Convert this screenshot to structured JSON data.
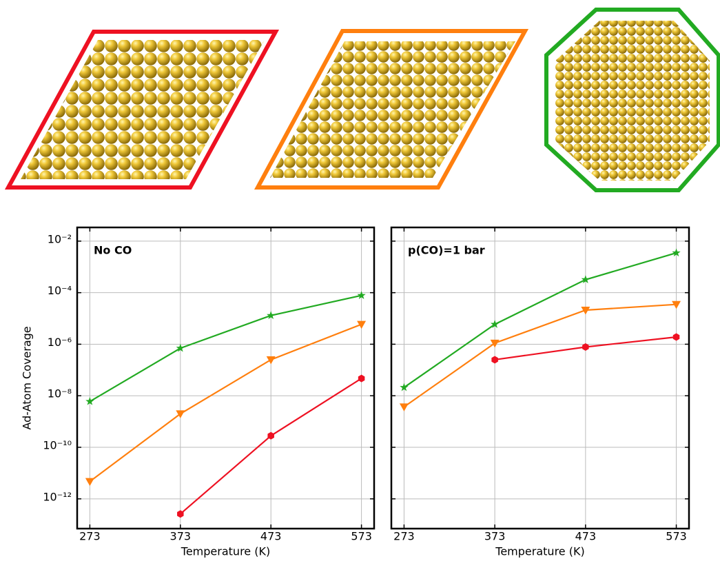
{
  "chart_data": [
    {
      "type": "line",
      "annotation": "No CO",
      "ylabel": "Ad-Atom Coverage",
      "xlabel": "Temperature (K)",
      "x": [
        273,
        373,
        473,
        573
      ],
      "xlim": [
        259,
        587
      ],
      "xticks": [
        273,
        373,
        473,
        573
      ],
      "log_y": true,
      "ylim": [
        7e-14,
        0.034
      ],
      "grid": true,
      "ytick_labels": true,
      "yticks": [
        {
          "value": 1e-12,
          "label": "10⁻¹²"
        },
        {
          "value": 1e-10,
          "label": "10⁻¹⁰"
        },
        {
          "value": 1e-08,
          "label": "10⁻⁸"
        },
        {
          "value": 1e-06,
          "label": "10⁻⁶"
        },
        {
          "value": 0.0001,
          "label": "10⁻⁴"
        },
        {
          "value": 0.01,
          "label": "10⁻²"
        }
      ],
      "series": [
        {
          "color": "#22aa22",
          "marker": "star",
          "values": [
            6e-09,
            7e-07,
            1.3e-05,
            7.8e-05
          ]
        },
        {
          "color": "#ff7f0e",
          "marker": "triangle-down",
          "values": [
            4.7e-12,
            2e-09,
            2.5e-07,
            5.9e-06
          ]
        },
        {
          "color": "#ee1122",
          "marker": "hexagon",
          "values": [
            null,
            2.6e-13,
            2.8e-10,
            4.7e-08
          ]
        }
      ]
    },
    {
      "type": "line",
      "annotation": "p(CO)=1 bar",
      "xlabel": "Temperature (K)",
      "x": [
        273,
        373,
        473,
        573
      ],
      "xlim": [
        259,
        587
      ],
      "xticks": [
        273,
        373,
        473,
        573
      ],
      "log_y": true,
      "ylim": [
        7e-14,
        0.034
      ],
      "grid": true,
      "ytick_labels": false,
      "yticks": [
        {
          "value": 1e-12,
          "label": "10⁻¹²"
        },
        {
          "value": 1e-10,
          "label": "10⁻¹⁰"
        },
        {
          "value": 1e-08,
          "label": "10⁻⁸"
        },
        {
          "value": 1e-06,
          "label": "10⁻⁶"
        },
        {
          "value": 0.0001,
          "label": "10⁻⁴"
        },
        {
          "value": 0.01,
          "label": "10⁻²"
        }
      ],
      "series": [
        {
          "color": "#22aa22",
          "marker": "star",
          "values": [
            2.1e-08,
            5.9e-06,
            0.00032,
            0.0035
          ]
        },
        {
          "color": "#ff7f0e",
          "marker": "triangle-down",
          "values": [
            3.7e-09,
            1.1e-06,
            2.1e-05,
            3.5e-05
          ]
        },
        {
          "color": "#ee1122",
          "marker": "hexagon",
          "values": [
            null,
            2.5e-07,
            7.8e-07,
            1.9e-06
          ]
        }
      ]
    }
  ]
}
